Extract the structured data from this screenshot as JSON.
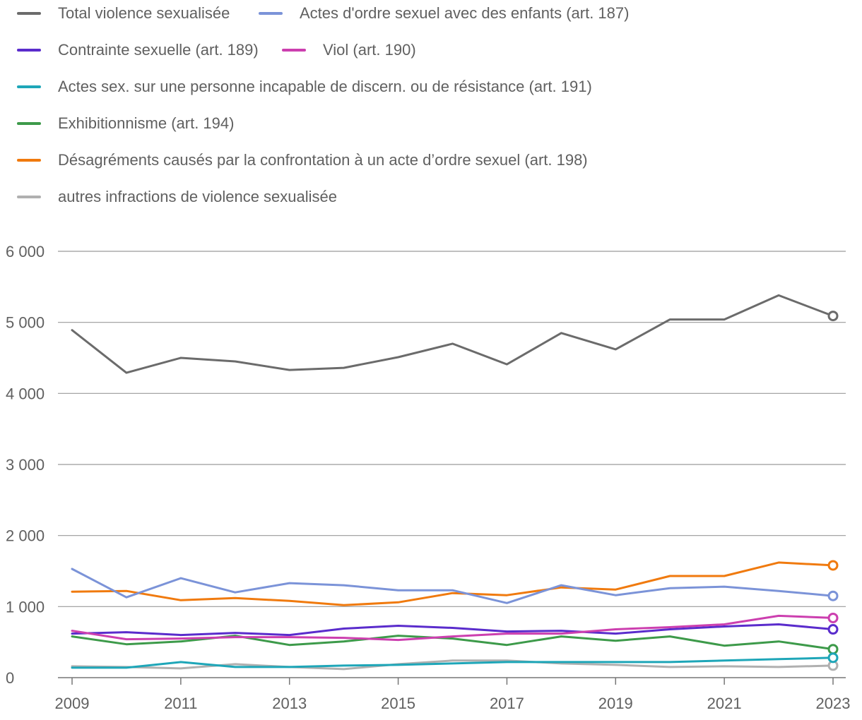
{
  "chart_data": {
    "type": "line",
    "title": "",
    "xlabel": "",
    "ylabel": "",
    "x": [
      2009,
      2010,
      2011,
      2012,
      2013,
      2014,
      2015,
      2016,
      2017,
      2018,
      2019,
      2020,
      2021,
      2022,
      2023
    ],
    "x_tick_labels": [
      "2009",
      "2011",
      "2013",
      "2015",
      "2017",
      "2019",
      "2021",
      "2023"
    ],
    "x_tick_values": [
      2009,
      2011,
      2013,
      2015,
      2017,
      2019,
      2021,
      2023
    ],
    "ylim": [
      0,
      6000
    ],
    "y_tick_values": [
      0,
      1000,
      2000,
      3000,
      4000,
      5000,
      6000
    ],
    "y_tick_labels": [
      "0",
      "1 000",
      "2 000",
      "3 000",
      "4 000",
      "5 000",
      "6 000"
    ],
    "grid": true,
    "legend_position": "top",
    "series": [
      {
        "name": "Total violence sexualisée",
        "color": "#6b6b6b",
        "values": [
          4890,
          4290,
          4500,
          4450,
          4330,
          4360,
          4510,
          4700,
          4410,
          4850,
          4620,
          5040,
          5040,
          5380,
          5090
        ]
      },
      {
        "name": "Actes d'ordre sexuel avec des enfants (art. 187)",
        "color": "#7b93d8",
        "values": [
          1530,
          1130,
          1400,
          1200,
          1330,
          1300,
          1230,
          1230,
          1050,
          1300,
          1160,
          1260,
          1280,
          1220,
          1150
        ]
      },
      {
        "name": "Contrainte sexuelle (art. 189)",
        "color": "#5a2ccc",
        "values": [
          620,
          640,
          600,
          630,
          600,
          690,
          730,
          700,
          650,
          660,
          620,
          680,
          720,
          750,
          680
        ]
      },
      {
        "name": "Viol (art. 190)",
        "color": "#cc3faf",
        "values": [
          660,
          540,
          550,
          570,
          570,
          560,
          530,
          580,
          620,
          620,
          680,
          710,
          750,
          870,
          840
        ]
      },
      {
        "name": "Actes sex. sur une personne incapable de discern. ou de résistance (art. 191)",
        "color": "#1ea6b8",
        "values": [
          140,
          140,
          220,
          150,
          150,
          170,
          180,
          200,
          220,
          220,
          220,
          220,
          240,
          260,
          280
        ]
      },
      {
        "name": "Exhibitionnisme (art. 194)",
        "color": "#3d9a4a",
        "values": [
          580,
          470,
          510,
          590,
          460,
          510,
          590,
          550,
          460,
          580,
          520,
          580,
          450,
          510,
          400
        ]
      },
      {
        "name": "Désagréments causés par la confrontation à un acte d’ordre sexuel (art. 198)",
        "color": "#f07a0e",
        "values": [
          1210,
          1220,
          1090,
          1120,
          1080,
          1020,
          1060,
          1190,
          1160,
          1270,
          1240,
          1430,
          1430,
          1620,
          1580
        ]
      },
      {
        "name": "autres infractions de violence sexualisée",
        "color": "#b0b0b0",
        "values": [
          160,
          150,
          130,
          190,
          150,
          120,
          190,
          240,
          240,
          200,
          180,
          150,
          160,
          150,
          170
        ]
      }
    ]
  }
}
